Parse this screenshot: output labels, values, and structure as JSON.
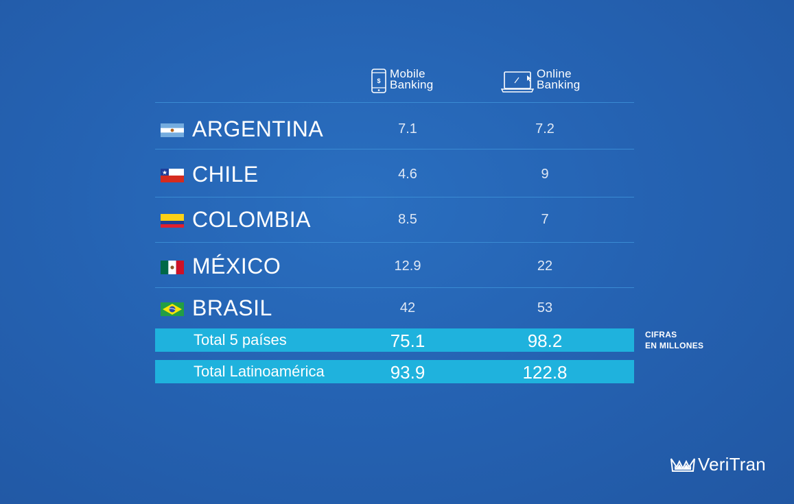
{
  "headers": {
    "mobile": [
      "Mobile",
      "Banking"
    ],
    "online": [
      "Online",
      "Banking"
    ]
  },
  "rows": [
    {
      "country": "ARGENTINA",
      "flag": "argentina-flag",
      "mobile": "7.1",
      "online": "7.2"
    },
    {
      "country": "CHILE",
      "flag": "chile-flag",
      "mobile": "4.6",
      "online": "9"
    },
    {
      "country": "COLOMBIA",
      "flag": "colombia-flag",
      "mobile": "8.5",
      "online": "7"
    },
    {
      "country": "MÉXICO",
      "flag": "mexico-flag",
      "mobile": "12.9",
      "online": "22"
    },
    {
      "country": "BRASIL",
      "flag": "brazil-flag",
      "mobile": "42",
      "online": "53"
    }
  ],
  "totals": [
    {
      "label": "Total 5 países",
      "mobile": "75.1",
      "online": "98.2"
    },
    {
      "label": "Total Latinoamérica",
      "mobile": "93.9",
      "online": "122.8"
    }
  ],
  "note": [
    "CIFRAS",
    "EN MILLONES"
  ],
  "logo_text": "VeriTran",
  "colors": {
    "background": "#2563b3",
    "total_bar": "#1fb2dd",
    "divider": "#3d8fd6"
  },
  "chart_data": {
    "type": "table",
    "columns": [
      "Mobile Banking",
      "Online Banking"
    ],
    "categories": [
      "ARGENTINA",
      "CHILE",
      "COLOMBIA",
      "MÉXICO",
      "BRASIL",
      "Total 5 países",
      "Total Latinoamérica"
    ],
    "series": [
      {
        "name": "Mobile Banking",
        "values": [
          7.1,
          4.6,
          8.5,
          12.9,
          42,
          75.1,
          93.9
        ]
      },
      {
        "name": "Online Banking",
        "values": [
          7.2,
          9,
          7,
          22,
          53,
          98.2,
          122.8
        ]
      }
    ]
  }
}
